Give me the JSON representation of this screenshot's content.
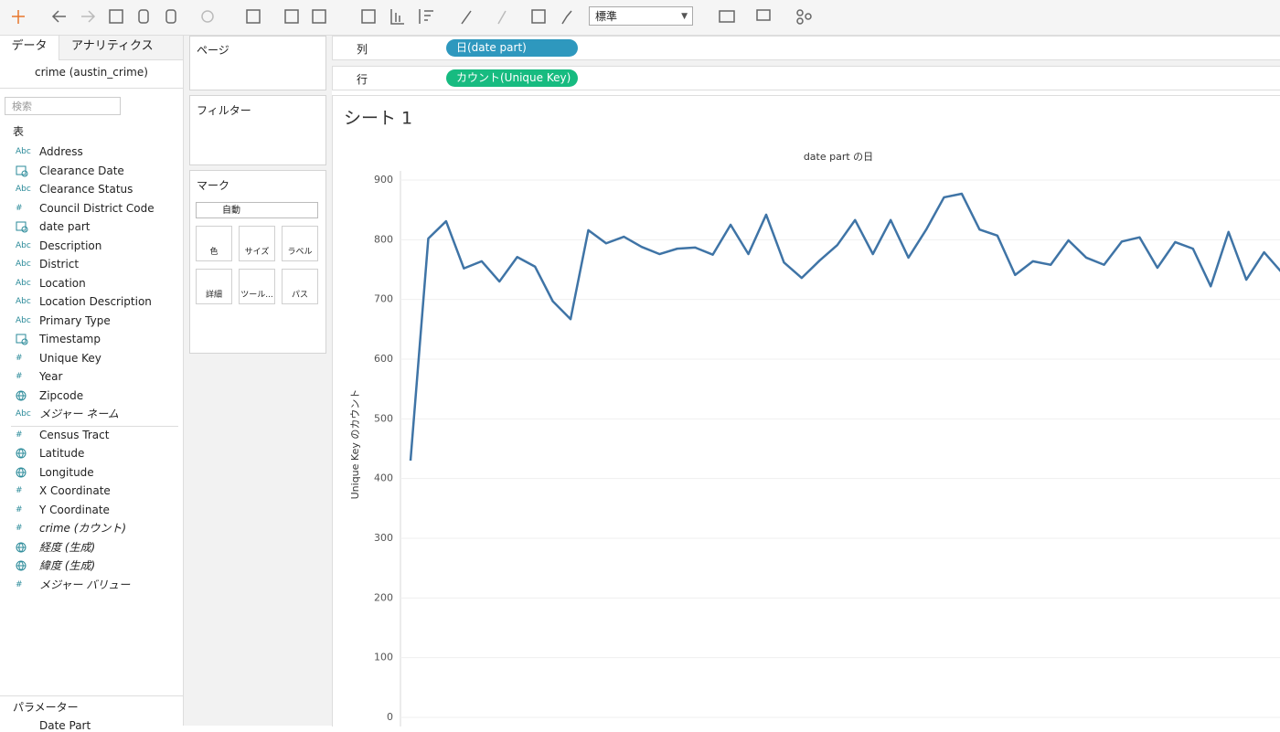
{
  "toolbar": {
    "view_mode": "標準"
  },
  "data_pane": {
    "tabs": [
      "データ",
      "アナリティクス"
    ],
    "datasource": "crime (austin_crime)",
    "search_placeholder": "検索",
    "section": "表",
    "dimensions": [
      {
        "icon": "Abc",
        "name": "Address"
      },
      {
        "kind": "date",
        "name": "Clearance Date"
      },
      {
        "icon": "Abc",
        "name": "Clearance Status"
      },
      {
        "icon": "#",
        "name": "Council District Code"
      },
      {
        "kind": "date",
        "name": "date part"
      },
      {
        "icon": "Abc",
        "name": "Description"
      },
      {
        "icon": "Abc",
        "name": "District"
      },
      {
        "icon": "Abc",
        "name": "Location"
      },
      {
        "icon": "Abc",
        "name": "Location Description"
      },
      {
        "icon": "Abc",
        "name": "Primary Type"
      },
      {
        "kind": "date",
        "name": "Timestamp"
      },
      {
        "icon": "#",
        "name": "Unique Key"
      },
      {
        "icon": "#",
        "name": "Year"
      },
      {
        "kind": "geo",
        "name": "Zipcode"
      },
      {
        "icon": "Abc",
        "name": "メジャー ネーム",
        "italic": true
      }
    ],
    "measures": [
      {
        "icon": "#",
        "name": "Census Tract"
      },
      {
        "kind": "geo",
        "name": "Latitude"
      },
      {
        "kind": "geo",
        "name": "Longitude"
      },
      {
        "icon": "#",
        "name": "X Coordinate"
      },
      {
        "icon": "#",
        "name": "Y Coordinate"
      },
      {
        "icon": "#",
        "name": "crime (カウント)",
        "italic": true
      },
      {
        "kind": "geo",
        "name": "経度 (生成)",
        "italic": true
      },
      {
        "kind": "geo",
        "name": "緯度 (生成)",
        "italic": true
      },
      {
        "icon": "#",
        "name": "メジャー バリュー",
        "italic": true
      }
    ],
    "parameters_title": "パラメーター",
    "parameters": [
      "Date Part"
    ]
  },
  "cards": {
    "pages": "ページ",
    "filters": "フィルター",
    "marks": "マーク",
    "mark_type": "自動",
    "mark_buttons": [
      "色",
      "サイズ",
      "ラベル",
      "詳細",
      "ツール...",
      "パス"
    ]
  },
  "shelves": {
    "columns_label": "列",
    "columns_pill": "日(date part)",
    "rows_label": "行",
    "rows_pill": "カウント(Unique Key)"
  },
  "sheet_title": "シート 1",
  "chart_data": {
    "type": "line",
    "title": "date part の日",
    "y_label": "Unique Key のカウント",
    "color": "#3f74a6",
    "values": [
      430,
      802,
      831,
      752,
      764,
      730,
      771,
      755,
      697,
      667,
      816,
      794,
      805,
      788,
      776,
      785,
      787,
      775,
      825,
      776,
      842,
      762,
      736,
      765,
      791,
      833,
      776,
      833,
      770,
      817,
      871,
      877,
      817,
      807,
      741,
      764,
      758,
      799,
      770,
      758,
      797,
      804,
      753,
      796,
      785,
      722,
      813,
      733,
      779,
      745
    ],
    "ylim": [
      0,
      900
    ],
    "yticks": [
      0,
      100,
      200,
      300,
      400,
      500,
      600,
      700,
      800,
      900
    ],
    "grid": true
  }
}
